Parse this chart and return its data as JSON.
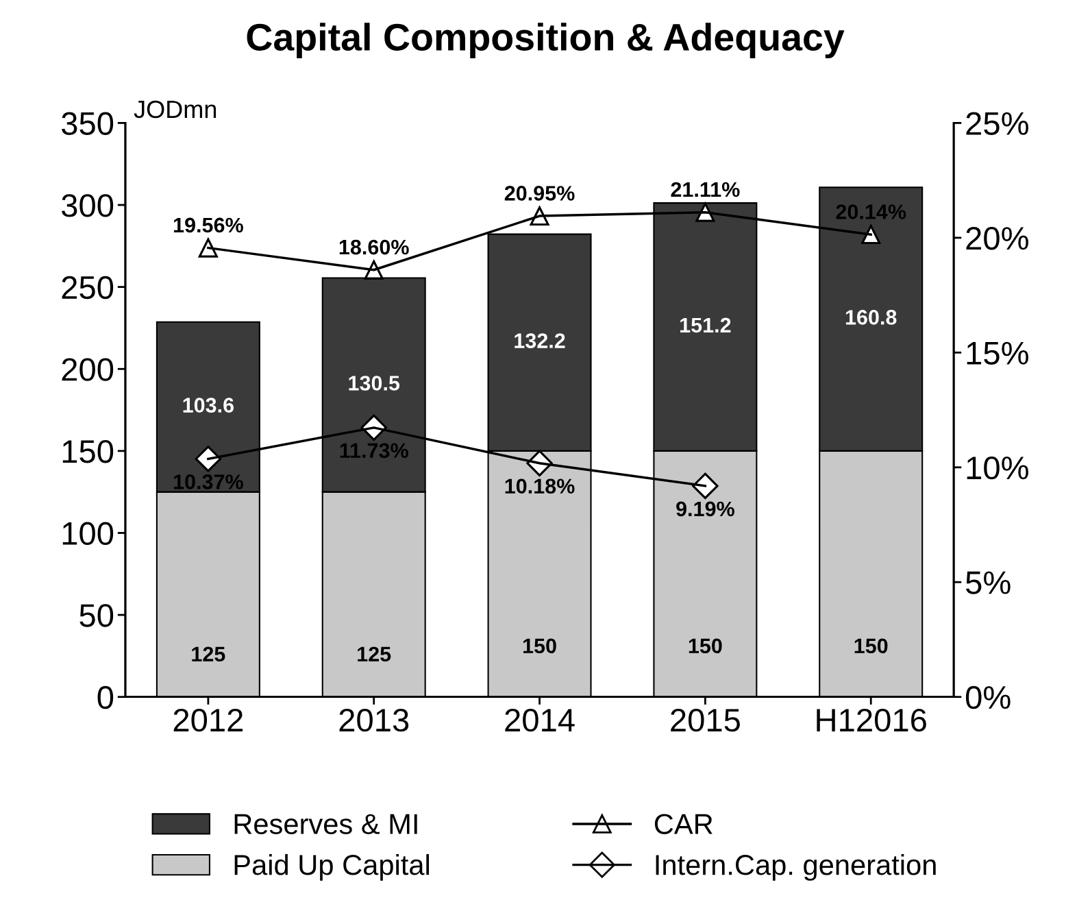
{
  "chart_data": {
    "type": "bar",
    "title": "Capital Composition & Adequacy",
    "categories": [
      "2012",
      "2013",
      "2014",
      "2015",
      "H12016"
    ],
    "stacked": true,
    "ylim": [
      0,
      350
    ],
    "yticks": [
      0,
      50,
      100,
      150,
      200,
      250,
      300,
      350
    ],
    "y2lim": [
      0,
      25
    ],
    "y2ticks": [
      {
        "value": 0,
        "label": "0%"
      },
      {
        "value": 5,
        "label": "5%"
      },
      {
        "value": 10,
        "label": "10%"
      },
      {
        "value": 15,
        "label": "15%"
      },
      {
        "value": 20,
        "label": "20%"
      },
      {
        "value": 25,
        "label": "25%"
      }
    ],
    "annotations": [
      "JODmn"
    ],
    "grid": false,
    "legend": "bottom",
    "series": [
      {
        "name": "Paid Up Capital",
        "color": "#c8c8c8",
        "values": [
          125,
          125,
          150,
          150,
          150
        ],
        "value_labels": [
          "125",
          "125",
          "150",
          "150",
          "150"
        ]
      },
      {
        "name": "Reserves & MI",
        "color": "#3a3a3a",
        "values": [
          103.6,
          130.5,
          132.2,
          151.2,
          160.8
        ],
        "value_labels": [
          "103.6",
          "130.5",
          "132.2",
          "151.2",
          "160.8"
        ]
      },
      {
        "name": "CAR",
        "type": "line",
        "axis": "y2",
        "color": "#000000",
        "marker": "triangle",
        "values": [
          19.56,
          18.6,
          20.95,
          21.11,
          20.14
        ],
        "value_labels": [
          "19.56%",
          "18.60%",
          "20.95%",
          "21.11%",
          "20.14%"
        ]
      },
      {
        "name": "Intern.Cap. generation",
        "type": "line",
        "axis": "y2",
        "color": "#000000",
        "marker": "diamond",
        "values": [
          10.37,
          11.73,
          10.18,
          9.19,
          null
        ],
        "value_labels": [
          "10.37%",
          "11.73%",
          "10.18%",
          "9.19%",
          null
        ]
      }
    ]
  }
}
